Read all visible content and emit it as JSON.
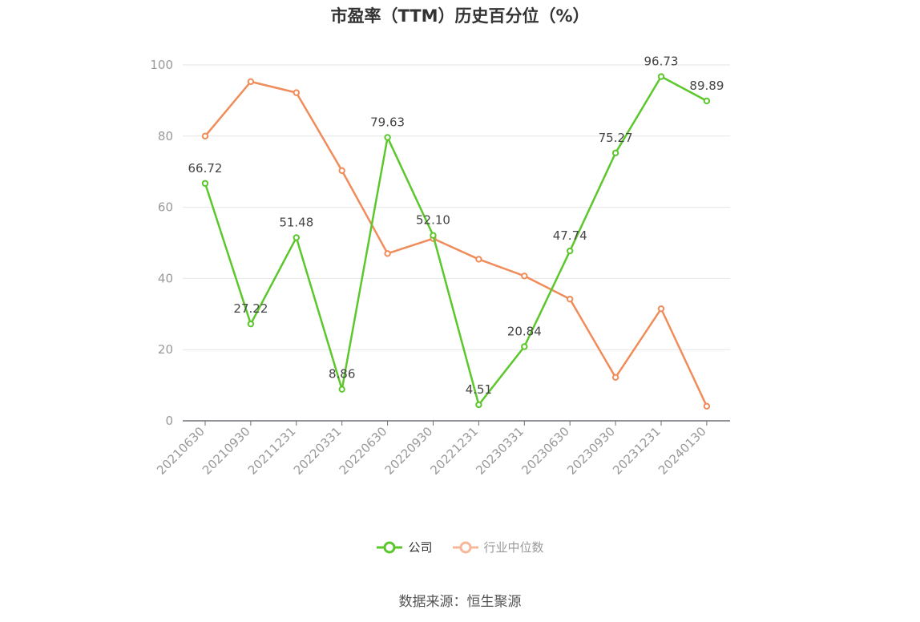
{
  "source_text": "数据来源：恒生聚源",
  "chart_data": {
    "type": "line",
    "title": "市盈率（TTM）历史百分位（%）",
    "categories": [
      "20210630",
      "20210930",
      "20211231",
      "20220331",
      "20220630",
      "20220930",
      "20221231",
      "20230331",
      "20230630",
      "20230930",
      "20231231",
      "20240130"
    ],
    "ylim": [
      0,
      100
    ],
    "yticks": [
      0,
      20,
      40,
      60,
      80,
      100
    ],
    "grid": true,
    "legend_position": "bottom",
    "series": [
      {
        "name": "公司",
        "color": "#5cc72c",
        "values": [
          66.72,
          27.22,
          51.48,
          8.86,
          79.63,
          52.1,
          4.51,
          20.84,
          47.74,
          75.27,
          96.73,
          89.89
        ],
        "labels": [
          "66.72",
          "27.22",
          "51.48",
          "8.86",
          "79.63",
          "52.10",
          "4.51",
          "20.84",
          "47.74",
          "75.27",
          "96.73",
          "89.89"
        ]
      },
      {
        "name": "行业中位数",
        "color": "#f08c5a",
        "legend_color": "#f5b89a",
        "values": [
          80.0,
          95.3,
          92.2,
          70.3,
          47.0,
          51.2,
          45.4,
          40.7,
          34.2,
          12.2,
          31.5,
          4.1
        ]
      }
    ]
  }
}
